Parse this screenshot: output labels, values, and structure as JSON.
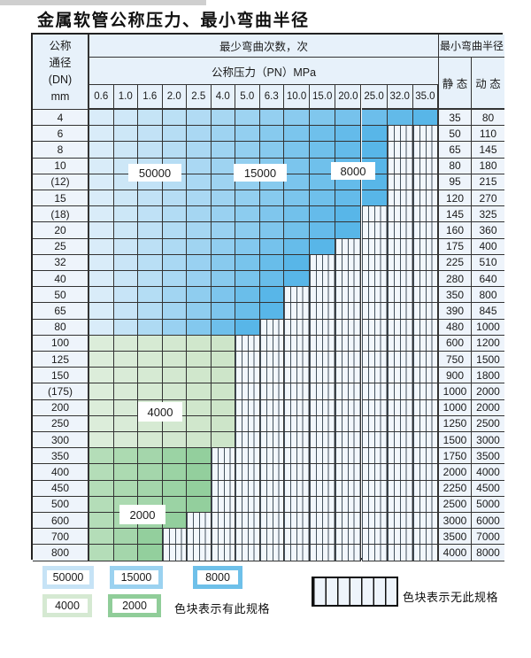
{
  "title": "金属软管公称压力、最小弯曲半径",
  "table": {
    "dn_header_lines": [
      "公称",
      "通径",
      "(DN)",
      "mm"
    ],
    "bend_cycles_header": "最少弯曲次数，次",
    "pressure_header": "公称压力（PN）MPa",
    "bend_radius_header": "最小弯曲半径",
    "static_header": "静 态",
    "dynamic_header": "动 态",
    "pressure_columns": [
      "0.6",
      "1.0",
      "1.6",
      "2.0",
      "2.5",
      "4.0",
      "5.0",
      "6.3",
      "10.0",
      "15.0",
      "20.0",
      "25.0",
      "32.0",
      "35.0"
    ],
    "rows": [
      {
        "dn": "4",
        "colored": 14,
        "zone": "blue",
        "static": "35",
        "dynamic": "80"
      },
      {
        "dn": "6",
        "colored": 12,
        "zone": "blue",
        "static": "50",
        "dynamic": "110"
      },
      {
        "dn": "8",
        "colored": 12,
        "zone": "blue",
        "static": "65",
        "dynamic": "145"
      },
      {
        "dn": "10",
        "colored": 12,
        "zone": "blue",
        "static": "80",
        "dynamic": "180"
      },
      {
        "dn": "(12)",
        "colored": 12,
        "zone": "blue",
        "static": "95",
        "dynamic": "215"
      },
      {
        "dn": "15",
        "colored": 12,
        "zone": "blue",
        "static": "120",
        "dynamic": "270"
      },
      {
        "dn": "(18)",
        "colored": 11,
        "zone": "blue",
        "static": "145",
        "dynamic": "325"
      },
      {
        "dn": "20",
        "colored": 11,
        "zone": "blue",
        "static": "160",
        "dynamic": "360"
      },
      {
        "dn": "25",
        "colored": 10,
        "zone": "blue",
        "static": "175",
        "dynamic": "400"
      },
      {
        "dn": "32",
        "colored": 9,
        "zone": "blue",
        "static": "225",
        "dynamic": "510"
      },
      {
        "dn": "40",
        "colored": 9,
        "zone": "blue",
        "static": "280",
        "dynamic": "640"
      },
      {
        "dn": "50",
        "colored": 8,
        "zone": "blue",
        "static": "350",
        "dynamic": "800"
      },
      {
        "dn": "65",
        "colored": 8,
        "zone": "blue",
        "static": "390",
        "dynamic": "845"
      },
      {
        "dn": "80",
        "colored": 7,
        "zone": "blue",
        "static": "480",
        "dynamic": "1000"
      },
      {
        "dn": "100",
        "colored": 6,
        "zone": "green_light",
        "static": "600",
        "dynamic": "1200"
      },
      {
        "dn": "125",
        "colored": 6,
        "zone": "green_light",
        "static": "750",
        "dynamic": "1500"
      },
      {
        "dn": "150",
        "colored": 6,
        "zone": "green_light",
        "static": "900",
        "dynamic": "1800"
      },
      {
        "dn": "(175)",
        "colored": 6,
        "zone": "green_light",
        "static": "1000",
        "dynamic": "2000"
      },
      {
        "dn": "200",
        "colored": 6,
        "zone": "green_light",
        "static": "1000",
        "dynamic": "2000"
      },
      {
        "dn": "250",
        "colored": 6,
        "zone": "green_light",
        "static": "1250",
        "dynamic": "2500"
      },
      {
        "dn": "300",
        "colored": 6,
        "zone": "green_light",
        "static": "1500",
        "dynamic": "3000"
      },
      {
        "dn": "350",
        "colored": 5,
        "zone": "green_dark",
        "static": "1750",
        "dynamic": "3500"
      },
      {
        "dn": "400",
        "colored": 5,
        "zone": "green_dark",
        "static": "2000",
        "dynamic": "4000"
      },
      {
        "dn": "450",
        "colored": 5,
        "zone": "green_dark",
        "static": "2250",
        "dynamic": "4500"
      },
      {
        "dn": "500",
        "colored": 5,
        "zone": "green_dark",
        "static": "2500",
        "dynamic": "5000"
      },
      {
        "dn": "600",
        "colored": 4,
        "zone": "green_dark",
        "static": "3000",
        "dynamic": "6000"
      },
      {
        "dn": "700",
        "colored": 3,
        "zone": "green_dark",
        "static": "3500",
        "dynamic": "7000"
      },
      {
        "dn": "800",
        "colored": 3,
        "zone": "green_dark",
        "static": "4000",
        "dynamic": "8000"
      }
    ],
    "cycle_labels": [
      "50000",
      "15000",
      "8000",
      "4000",
      "2000"
    ]
  },
  "legend": {
    "swatches": [
      {
        "label": "50000",
        "color": "#c6e3f6"
      },
      {
        "label": "15000",
        "color": "#9bd2f0"
      },
      {
        "label": "8000",
        "color": "#6ec0e9"
      },
      {
        "label": "4000",
        "color": "#d5e9d2"
      },
      {
        "label": "2000",
        "color": "#90cd99"
      }
    ],
    "has_spec_text": "色块表示有此规格",
    "no_spec_text": "色块表示无此规格"
  },
  "colors": {
    "blue_light": "#d9ecf9",
    "blue_dark": "#58b6e8",
    "green_light_a": "#dcedda",
    "green_light_b": "#cde5c9",
    "green_dark_a": "#b4ddb8",
    "green_dark_b": "#93cf9d",
    "stripe_bg": "#f2f7fc",
    "stripe_line": "#44525e",
    "grid": "#333333"
  }
}
